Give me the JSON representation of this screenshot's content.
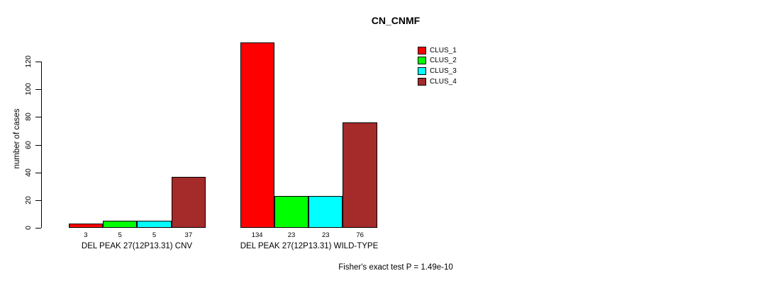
{
  "title": "CN_CNMF",
  "footer": "Fisher's exact test P = 1.49e-10",
  "chart_data": {
    "type": "bar",
    "title": "CN_CNMF",
    "xlabel": "",
    "ylabel": "number of cases",
    "ylim": [
      0,
      120
    ],
    "yticks": [
      0,
      20,
      40,
      60,
      80,
      100,
      120
    ],
    "grid": false,
    "legend_position": "top-right",
    "bar_border_color": "#000000",
    "series": [
      {
        "name": "CLUS_1",
        "color": "#ff0000"
      },
      {
        "name": "CLUS_2",
        "color": "#00ff00"
      },
      {
        "name": "CLUS_3",
        "color": "#00ffff"
      },
      {
        "name": "CLUS_4",
        "color": "#a52a2a"
      }
    ],
    "groups": [
      {
        "label": "DEL PEAK 27(12P13.31) CNV",
        "values": [
          3,
          5,
          5,
          37
        ]
      },
      {
        "label": "DEL PEAK 27(12P13.31) WILD-TYPE",
        "values": [
          134,
          23,
          23,
          76
        ]
      }
    ],
    "bar_value_labels_shown": true,
    "annotation": "Fisher's exact test P = 1.49e-10"
  }
}
